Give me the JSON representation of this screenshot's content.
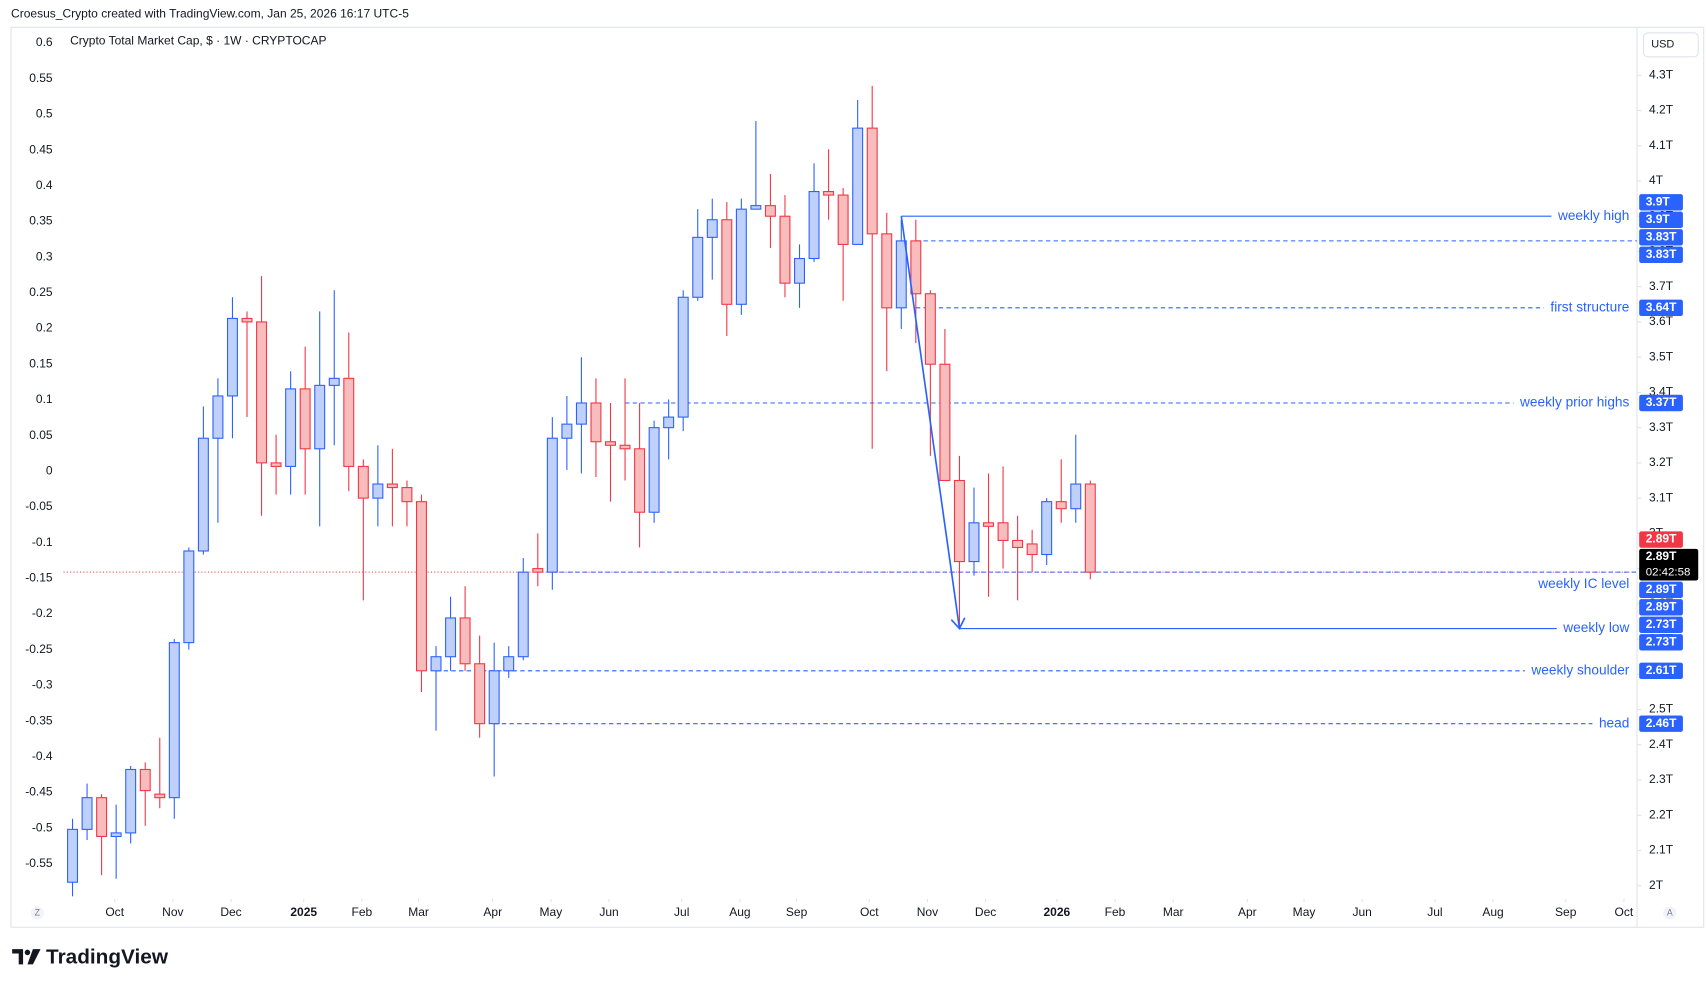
{
  "chart_data": {
    "type": "candlestick",
    "header": "Croesus_Crypto created with TradingView.com, Jan 25, 2026 16:17 UTC-5",
    "title": "Crypto Total Market Cap, $ · 1W · CRYPTOCAP",
    "currency_button": "USD",
    "brand": "TradingView",
    "left_button": "Z",
    "right_button": "A",
    "up_color": "#2962ff",
    "up_fill": "#bfd1fb",
    "down_color": "#f23645",
    "down_fill": "#f8bcbc",
    "open": [
      2.01,
      2.16,
      2.25,
      2.14,
      2.15,
      2.33,
      2.26,
      2.25,
      2.69,
      2.95,
      3.27,
      3.39,
      3.61,
      3.6,
      3.2,
      3.19,
      3.41,
      3.24,
      3.42,
      3.44,
      3.19,
      3.1,
      3.14,
      3.13,
      3.09,
      2.61,
      2.65,
      2.76,
      2.63,
      2.46,
      2.61,
      2.65,
      2.9,
      2.89,
      3.27,
      3.31,
      3.37,
      3.26,
      3.25,
      3.24,
      3.06,
      3.3,
      3.33,
      3.67,
      3.84,
      3.89,
      3.65,
      3.92,
      3.93,
      3.9,
      3.71,
      3.78,
      3.97,
      3.96,
      3.82,
      4.15,
      3.85,
      3.64,
      3.83,
      3.68,
      3.48,
      3.15,
      2.92,
      3.03,
      3.03,
      2.98,
      2.97,
      2.94,
      3.09,
      3.07,
      3.14
    ],
    "high": [
      2.19,
      2.29,
      2.26,
      2.23,
      2.34,
      2.35,
      2.42,
      2.7,
      2.96,
      3.36,
      3.44,
      3.67,
      3.63,
      3.73,
      3.28,
      3.46,
      3.53,
      3.63,
      3.69,
      3.57,
      3.21,
      3.25,
      3.24,
      3.15,
      3.11,
      2.68,
      2.82,
      2.85,
      2.71,
      2.69,
      2.68,
      2.93,
      3.0,
      3.33,
      3.39,
      3.5,
      3.44,
      3.37,
      3.44,
      3.37,
      3.32,
      3.38,
      3.69,
      3.92,
      3.95,
      3.94,
      3.95,
      4.17,
      4.02,
      3.96,
      3.82,
      4.05,
      4.09,
      3.98,
      4.23,
      4.27,
      3.91,
      3.89,
      3.89,
      3.69,
      3.58,
      3.22,
      3.13,
      3.17,
      3.19,
      3.05,
      3.01,
      3.1,
      3.21,
      3.28,
      3.15
    ],
    "low": [
      1.97,
      2.13,
      2.03,
      2.02,
      2.12,
      2.17,
      2.22,
      2.19,
      2.67,
      2.94,
      3.03,
      3.27,
      3.33,
      3.05,
      3.11,
      3.11,
      3.11,
      3.02,
      3.25,
      3.12,
      2.81,
      3.02,
      3.02,
      3.02,
      2.55,
      2.44,
      2.61,
      2.61,
      2.42,
      2.31,
      2.59,
      2.64,
      2.85,
      2.84,
      3.18,
      3.17,
      3.16,
      3.09,
      3.15,
      2.96,
      3.03,
      3.21,
      3.29,
      3.66,
      3.72,
      3.56,
      3.62,
      3.92,
      3.81,
      3.67,
      3.64,
      3.77,
      3.89,
      3.66,
      3.82,
      3.24,
      3.46,
      3.58,
      3.54,
      3.22,
      3.15,
      2.73,
      2.88,
      2.82,
      2.9,
      2.81,
      2.89,
      2.91,
      3.03,
      3.03,
      2.87
    ],
    "close": [
      2.16,
      2.25,
      2.14,
      2.15,
      2.33,
      2.27,
      2.25,
      2.69,
      2.95,
      3.27,
      3.39,
      3.61,
      3.6,
      3.2,
      3.19,
      3.41,
      3.24,
      3.42,
      3.44,
      3.19,
      3.1,
      3.14,
      3.13,
      3.09,
      2.61,
      2.65,
      2.76,
      2.63,
      2.46,
      2.61,
      2.65,
      2.89,
      2.89,
      3.27,
      3.31,
      3.37,
      3.26,
      3.25,
      3.24,
      3.06,
      3.3,
      3.33,
      3.67,
      3.84,
      3.89,
      3.65,
      3.92,
      3.93,
      3.9,
      3.71,
      3.78,
      3.97,
      3.96,
      3.82,
      4.15,
      3.85,
      3.64,
      3.83,
      3.68,
      3.48,
      3.15,
      2.92,
      3.03,
      3.02,
      2.98,
      2.96,
      2.94,
      3.09,
      3.07,
      3.14,
      2.89
    ],
    "xlim": [
      -3.1,
      107.6
    ],
    "xticks": [
      {
        "value": 2.9,
        "label": "Oct"
      },
      {
        "value": 6.9,
        "label": "Nov"
      },
      {
        "value": 10.9,
        "label": "Dec"
      },
      {
        "value": 15.9,
        "label": "2025"
      },
      {
        "value": 19.9,
        "label": "Feb"
      },
      {
        "value": 23.8,
        "label": "Mar"
      },
      {
        "value": 28.9,
        "label": "Apr"
      },
      {
        "value": 32.9,
        "label": "May"
      },
      {
        "value": 36.9,
        "label": "Jun"
      },
      {
        "value": 41.9,
        "label": "Jul"
      },
      {
        "value": 45.9,
        "label": "Aug"
      },
      {
        "value": 49.8,
        "label": "Sep"
      },
      {
        "value": 54.8,
        "label": "Oct"
      },
      {
        "value": 58.8,
        "label": "Nov"
      },
      {
        "value": 62.8,
        "label": "Dec"
      },
      {
        "value": 67.7,
        "label": "2026"
      },
      {
        "value": 71.7,
        "label": "Feb"
      },
      {
        "value": 75.7,
        "label": "Mar"
      },
      {
        "value": 80.8,
        "label": "Apr"
      },
      {
        "value": 84.7,
        "label": "May"
      },
      {
        "value": 88.7,
        "label": "Jun"
      },
      {
        "value": 93.7,
        "label": "Jul"
      },
      {
        "value": 97.7,
        "label": "Aug"
      },
      {
        "value": 102.7,
        "label": "Sep"
      },
      {
        "value": 106.7,
        "label": "Oct"
      }
    ],
    "ylim": [
      1.963,
      4.436
    ],
    "yticks": [
      {
        "value": 2,
        "label": "2T"
      },
      {
        "value": 2.1,
        "label": "2.1T"
      },
      {
        "value": 2.2,
        "label": "2.2T"
      },
      {
        "value": 2.3,
        "label": "2.3T"
      },
      {
        "value": 2.4,
        "label": "2.4T"
      },
      {
        "value": 2.5,
        "label": "2.5T"
      },
      {
        "value": 2.6,
        "label": "2.6T"
      },
      {
        "value": 2.7,
        "label": "2.7T"
      },
      {
        "value": 2.8,
        "label": "2.8T"
      },
      {
        "value": 2.9,
        "label": "2.9T"
      },
      {
        "value": 3,
        "label": "3T"
      },
      {
        "value": 3.1,
        "label": "3.1T"
      },
      {
        "value": 3.2,
        "label": "3.2T"
      },
      {
        "value": 3.3,
        "label": "3.3T"
      },
      {
        "value": 3.4,
        "label": "3.4T"
      },
      {
        "value": 3.5,
        "label": "3.5T"
      },
      {
        "value": 3.6,
        "label": "3.6T"
      },
      {
        "value": 3.7,
        "label": "3.7T"
      },
      {
        "value": 3.8,
        "label": "3.8T"
      },
      {
        "value": 3.9,
        "label": "3.9T"
      },
      {
        "value": 4,
        "label": "4T"
      },
      {
        "value": 4.1,
        "label": "4.1T"
      },
      {
        "value": 4.2,
        "label": "4.2T"
      },
      {
        "value": 4.3,
        "label": "4.3T"
      }
    ],
    "y2lim": [
      -0.599,
      0.622
    ],
    "y2ticks": [
      0.6,
      0.55,
      0.5,
      0.45,
      0.4,
      0.35,
      0.3,
      0.25,
      0.2,
      0.15,
      0.1,
      0.05,
      0,
      -0.05,
      -0.1,
      -0.15,
      -0.2,
      -0.25,
      -0.3,
      -0.35,
      -0.4,
      -0.45,
      -0.5,
      -0.55
    ],
    "levels": [
      {
        "label": "weekly high",
        "value": 3.9,
        "from": 57,
        "style": "solid"
      },
      {
        "value": 3.83,
        "from": 58,
        "style": "dashed"
      },
      {
        "label": "first structure",
        "value": 3.64,
        "from": 58,
        "style": "dashed"
      },
      {
        "label": "weekly prior highs",
        "value": 3.37,
        "from": 38,
        "style": "dashed"
      },
      {
        "label": "weekly IC level",
        "value": 2.89,
        "from": 33,
        "style": "dashed",
        "label_position": "below"
      },
      {
        "label": "weekly low",
        "value": 2.73,
        "from": 61,
        "style": "solid"
      },
      {
        "label": "weekly shoulder",
        "value": 2.61,
        "from": 25,
        "style": "dashed"
      },
      {
        "label": "head",
        "value": 2.46,
        "from": 29,
        "style": "dashed"
      }
    ],
    "level_color": "#2962ff",
    "arrow": {
      "x": [
        57,
        61
      ],
      "y": [
        3.9,
        2.73
      ]
    },
    "price_line": {
      "value": 2.89,
      "color": "#f23645"
    },
    "price_labels": [
      {
        "value": 3.9,
        "label": "3.9T",
        "color": "#2962ff"
      },
      {
        "value": 3.9,
        "label": "3.9T",
        "color": "#2962ff"
      },
      {
        "value": 3.83,
        "label": "3.83T",
        "color": "#2962ff"
      },
      {
        "value": 3.83,
        "label": "3.83T",
        "color": "#2962ff"
      },
      {
        "value": 3.64,
        "label": "3.64T",
        "color": "#2962ff"
      },
      {
        "value": 3.37,
        "label": "3.37T",
        "color": "#2962ff"
      },
      {
        "value": 2.89,
        "label": "2.89T",
        "color": "#f23645"
      },
      {
        "value": 2.89,
        "label": "2.89T",
        "color": "#000000",
        "countdown": "02:42:58"
      },
      {
        "value": 2.89,
        "label": "2.89T",
        "color": "#2962ff"
      },
      {
        "value": 2.89,
        "label": "2.89T",
        "color": "#2962ff"
      },
      {
        "value": 2.73,
        "label": "2.73T",
        "color": "#2962ff"
      },
      {
        "value": 2.73,
        "label": "2.73T",
        "color": "#2962ff"
      },
      {
        "value": 2.61,
        "label": "2.61T",
        "color": "#2962ff"
      },
      {
        "value": 2.46,
        "label": "2.46T",
        "color": "#2962ff"
      }
    ]
  }
}
